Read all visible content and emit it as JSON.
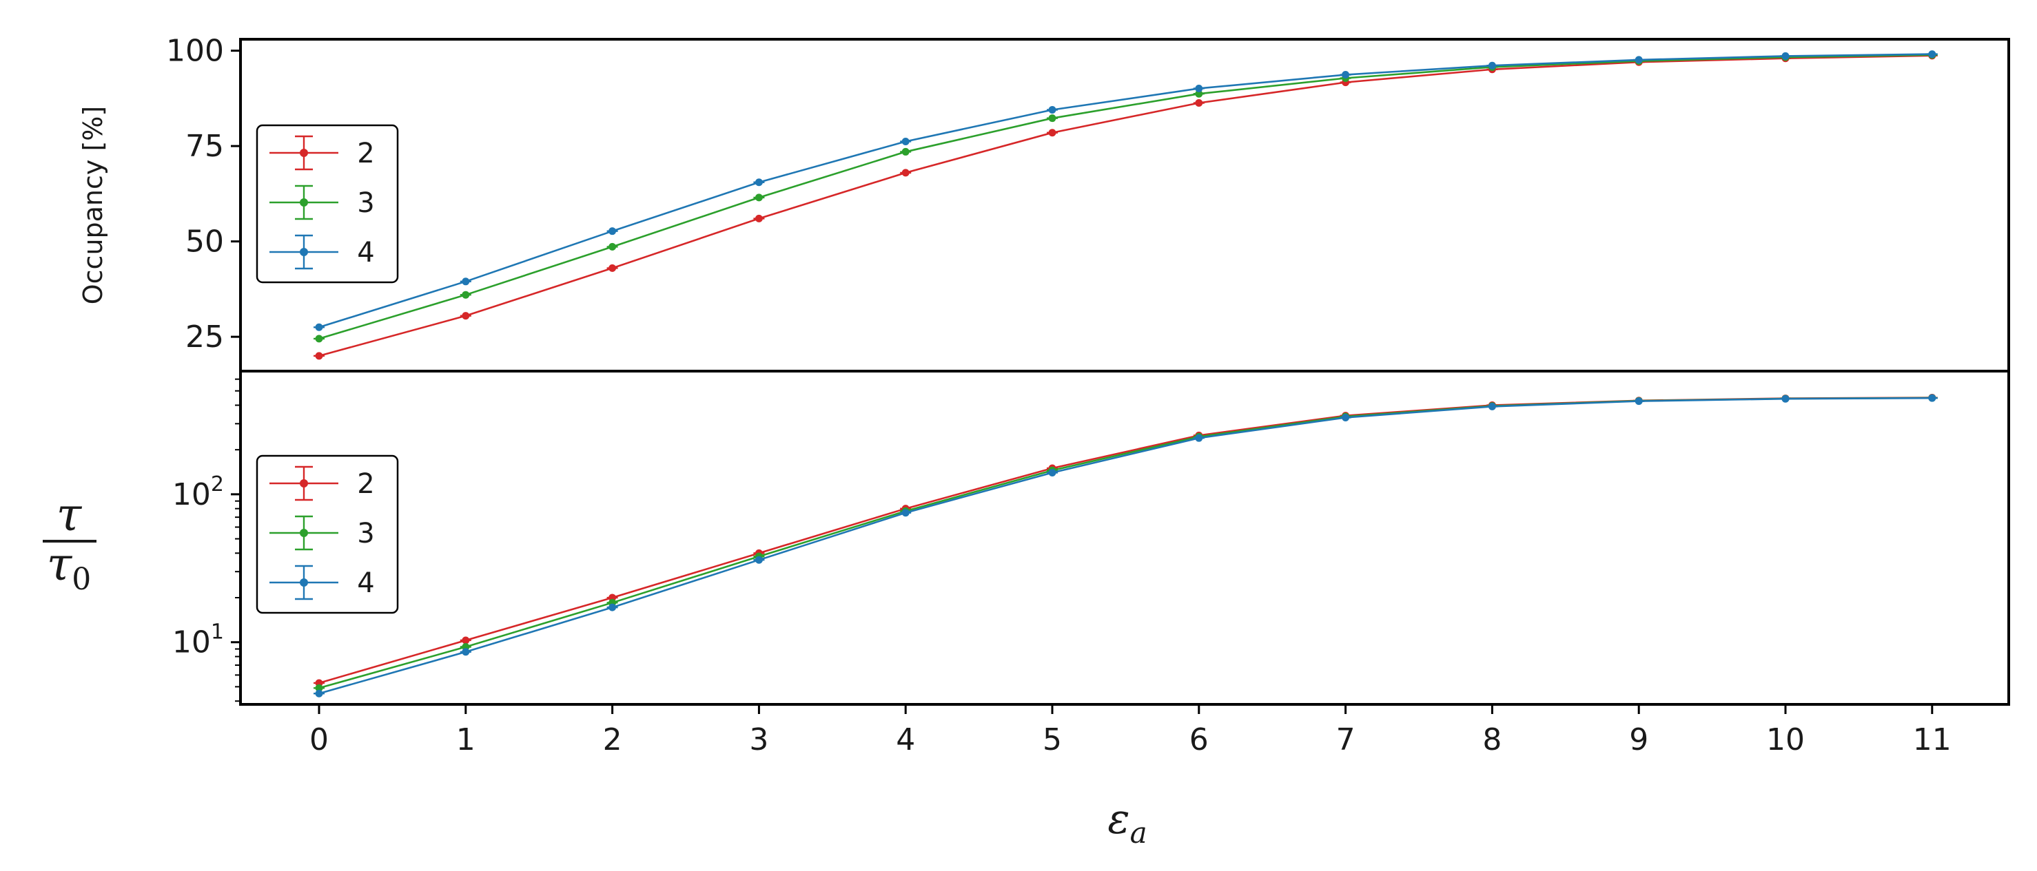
{
  "chart_data": [
    {
      "type": "line",
      "x": [
        0,
        1,
        2,
        3,
        4,
        5,
        6,
        7,
        8,
        9,
        10,
        11
      ],
      "ylabel": "Occupancy [%]",
      "xlabel": "",
      "ylim": [
        16,
        103
      ],
      "yscale": "linear",
      "yticks": [
        "25",
        "50",
        "75",
        "100"
      ],
      "grid": false,
      "legend_placement": "center-left",
      "series": [
        {
          "name": "2",
          "color": "#d62728",
          "values": [
            20,
            30.5,
            43,
            56,
            68,
            78.5,
            86.3,
            91.7,
            95.1,
            97,
            98,
            98.7
          ]
        },
        {
          "name": "3",
          "color": "#2ca02c",
          "values": [
            24.5,
            36,
            48.6,
            61.5,
            73.5,
            82.3,
            88.7,
            92.8,
            95.7,
            97.3,
            98.3,
            98.9
          ]
        },
        {
          "name": "4",
          "color": "#1f77b4",
          "values": [
            27.5,
            39.5,
            52.7,
            65.5,
            76.2,
            84.5,
            90.1,
            93.7,
            96.1,
            97.6,
            98.6,
            99.1
          ]
        }
      ]
    },
    {
      "type": "line",
      "x": [
        0,
        1,
        2,
        3,
        4,
        5,
        6,
        7,
        8,
        9,
        10,
        11
      ],
      "xlabel": "ε_a",
      "ylabel": "τ / τ0",
      "ylim": [
        3.8,
        680
      ],
      "yscale": "log",
      "yticks": [
        "10^1",
        "10^2"
      ],
      "grid": false,
      "legend_placement": "center-left",
      "series": [
        {
          "name": "2",
          "color": "#d62728",
          "values": [
            5.3,
            10.3,
            20,
            40,
            80,
            150,
            250,
            340,
            400,
            430,
            445,
            450
          ]
        },
        {
          "name": "3",
          "color": "#2ca02c",
          "values": [
            4.9,
            9.3,
            18.5,
            38,
            77,
            145,
            245,
            335,
            395,
            428,
            443,
            448
          ]
        },
        {
          "name": "4",
          "color": "#1f77b4",
          "values": [
            4.5,
            8.6,
            17.2,
            36,
            75,
            140,
            240,
            330,
            392,
            426,
            442,
            447
          ]
        }
      ]
    }
  ],
  "xticks": [
    "0",
    "1",
    "2",
    "3",
    "4",
    "5",
    "6",
    "7",
    "8",
    "9",
    "10",
    "11"
  ],
  "tick_exponent_base": "10"
}
